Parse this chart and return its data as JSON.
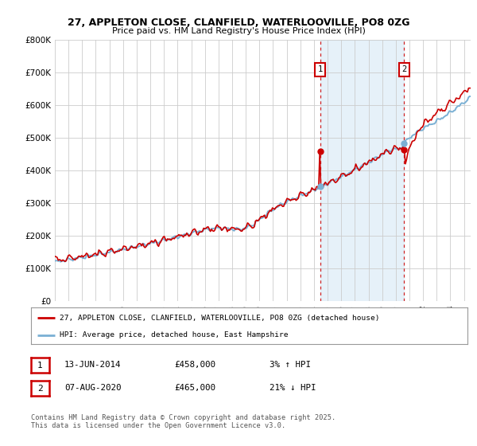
{
  "title_line1": "27, APPLETON CLOSE, CLANFIELD, WATERLOOVILLE, PO8 0ZG",
  "title_line2": "Price paid vs. HM Land Registry's House Price Index (HPI)",
  "ylabel_ticks": [
    "£0",
    "£100K",
    "£200K",
    "£300K",
    "£400K",
    "£500K",
    "£600K",
    "£700K",
    "£800K"
  ],
  "ytick_values": [
    0,
    100000,
    200000,
    300000,
    400000,
    500000,
    600000,
    700000,
    800000
  ],
  "ylim": [
    0,
    800000
  ],
  "xlim_start": 1995.0,
  "xlim_end": 2025.5,
  "hpi_color": "#7ab0d4",
  "hpi_fill_color": "#d6e8f5",
  "price_color": "#cc0000",
  "marker1_year": 2014.45,
  "marker2_year": 2020.6,
  "marker1_price": 458000,
  "marker2_price": 465000,
  "legend_line1": "27, APPLETON CLOSE, CLANFIELD, WATERLOOVILLE, PO8 0ZG (detached house)",
  "legend_line2": "HPI: Average price, detached house, East Hampshire",
  "table_row1_num": "1",
  "table_row1_date": "13-JUN-2014",
  "table_row1_price": "£458,000",
  "table_row1_hpi": "3% ↑ HPI",
  "table_row2_num": "2",
  "table_row2_date": "07-AUG-2020",
  "table_row2_price": "£465,000",
  "table_row2_hpi": "21% ↓ HPI",
  "footer": "Contains HM Land Registry data © Crown copyright and database right 2025.\nThis data is licensed under the Open Government Licence v3.0.",
  "background_color": "#ffffff",
  "grid_color": "#cccccc"
}
